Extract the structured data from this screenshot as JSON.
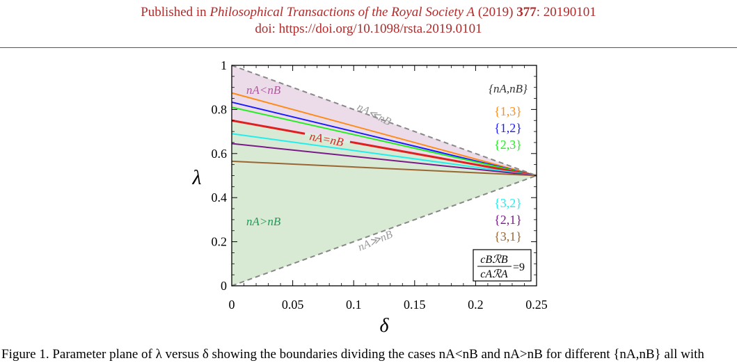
{
  "header": {
    "line1_prefix": "Published in ",
    "journal": "Philosophical Transactions of the Royal Society A",
    "year": " (2019) ",
    "volume": "377",
    "article": ": 20190101",
    "doi": "doi: https://doi.org/10.1098/rsta.2019.0101"
  },
  "colors": {
    "header_text": "#b02a2a",
    "region_nA_less": "#ecdcea",
    "region_nA_greater": "#d8ead3"
  },
  "chart_data": {
    "type": "line",
    "xlabel": "δ",
    "ylabel": "λ",
    "xlim": [
      0,
      0.25
    ],
    "ylim": [
      0,
      1
    ],
    "x_ticks": [
      "0",
      "0.05",
      "0.1",
      "0.15",
      "0.2",
      "0.25"
    ],
    "y_ticks": [
      "0",
      "0.2",
      "0.4",
      "0.6",
      "0.8",
      "1"
    ],
    "legend_title": "{nA,nB}",
    "legend_placement": "right",
    "ratio_box": {
      "numerator": "cBℛB",
      "denominator": "cAℛA",
      "value": "=9"
    },
    "regions": [
      {
        "label": "nA<nB",
        "color": "#ecdcea",
        "bounds": "between upper dashed line and nA=nB line"
      },
      {
        "label": "nA>nB",
        "color": "#d8ead3",
        "bounds": "between nA=nB line and lower dashed line"
      }
    ],
    "annotations": [
      {
        "text": "nA≪nB",
        "color": "#999999"
      },
      {
        "text": "nA≫nB",
        "color": "#999999"
      },
      {
        "text": "nA=nB",
        "color": "#e02020"
      },
      {
        "text": "nA<nB",
        "color": "#b0589e"
      },
      {
        "text": "nA>nB",
        "color": "#22995a"
      }
    ],
    "series": [
      {
        "name": "{1,3}",
        "color": "#ff8c1a",
        "x": [
          0,
          0.25
        ],
        "y": [
          0.875,
          0.5
        ]
      },
      {
        "name": "{1,2}",
        "color": "#1a1aff",
        "x": [
          0,
          0.25
        ],
        "y": [
          0.833,
          0.5
        ]
      },
      {
        "name": "{2,3}",
        "color": "#22ee22",
        "x": [
          0,
          0.25
        ],
        "y": [
          0.81,
          0.5
        ]
      },
      {
        "name": "nA=nB",
        "color": "#e02020",
        "x": [
          0,
          0.25
        ],
        "y": [
          0.75,
          0.5
        ],
        "thick": true
      },
      {
        "name": "{3,2}",
        "color": "#22eeee",
        "x": [
          0,
          0.25
        ],
        "y": [
          0.69,
          0.5
        ]
      },
      {
        "name": "{2,1}",
        "color": "#7a1a8a",
        "x": [
          0,
          0.25
        ],
        "y": [
          0.645,
          0.5
        ]
      },
      {
        "name": "{3,1}",
        "color": "#996633",
        "x": [
          0,
          0.25
        ],
        "y": [
          0.565,
          0.5
        ]
      },
      {
        "name": "nA≪nB",
        "color": "#888888",
        "x": [
          0,
          0.25
        ],
        "y": [
          1,
          0.5
        ],
        "dashed": true
      },
      {
        "name": "nA≫nB",
        "color": "#888888",
        "x": [
          0,
          0.25
        ],
        "y": [
          0,
          0.5
        ],
        "dashed": true
      }
    ]
  },
  "caption": {
    "text": "Figure 1. Parameter plane of λ versus δ showing the boundaries dividing the cases nA<nB and nA>nB for different {nA,nB} all with"
  }
}
